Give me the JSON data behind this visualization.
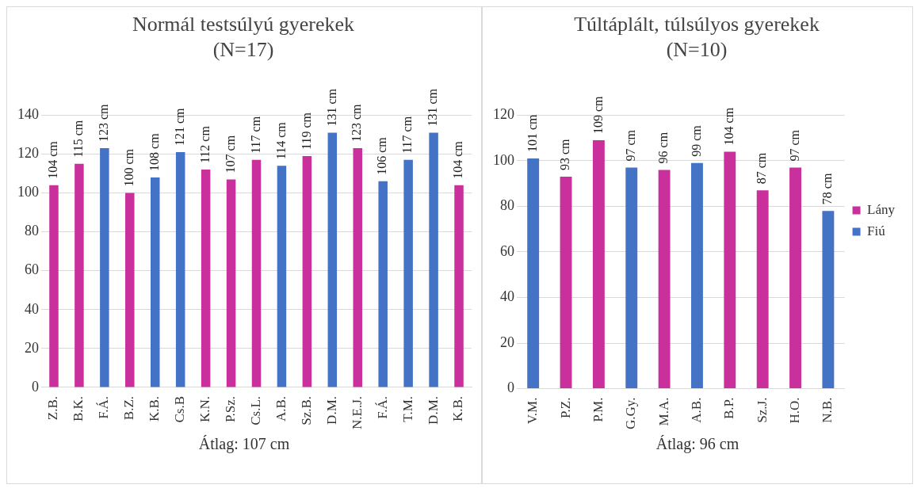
{
  "chart_data": [
    {
      "type": "bar",
      "title": "Normál testsúlyú gyerekek (N=17)",
      "categories": [
        "Z.B.",
        "B.K.",
        "F.Á.",
        "B.Z.",
        "K.B.",
        "Cs.B",
        "K.N.",
        "P.Sz.",
        "Cs.L.",
        "A.B.",
        "Sz.B.",
        "D.M.",
        "N.E.J.",
        "F.Á.",
        "T.M.",
        "D.M.",
        "K.B."
      ],
      "series": [
        {
          "color": "#c9309b",
          "values": [
            104,
            115,
            null,
            100,
            null,
            null,
            112,
            107,
            117,
            null,
            119,
            null,
            123,
            null,
            null,
            null,
            104
          ],
          "value_labels": [
            "104 cm",
            "115 cm",
            null,
            "100 cm",
            null,
            null,
            "112 cm",
            "107 cm",
            "117 cm",
            null,
            "119 cm",
            null,
            "123 cm",
            null,
            null,
            null,
            "104 cm"
          ]
        },
        {
          "color": "#4472c4",
          "values": [
            null,
            null,
            123,
            null,
            108,
            121,
            null,
            null,
            null,
            114,
            null,
            131,
            null,
            106,
            117,
            131,
            null
          ],
          "value_labels": [
            null,
            null,
            "123 cm",
            null,
            "108 cm",
            "121 cm",
            null,
            null,
            null,
            "114 cm",
            null,
            "131 cm",
            null,
            "106 cm",
            "117 cm",
            "131 cm",
            null
          ]
        }
      ],
      "ylim": [
        0,
        140
      ],
      "yticks": [
        0,
        20,
        40,
        60,
        80,
        100,
        120,
        140
      ],
      "grid": "y",
      "legend": false,
      "annotations": [
        "Átlag: 107 cm"
      ]
    },
    {
      "type": "bar",
      "title": "Túltáplált, túlsúlyos gyerekek (N=10)",
      "categories": [
        "V.M.",
        "P.Z.",
        "P.M.",
        "G.Gy.",
        "M.A.",
        "A.B.",
        "B.P.",
        "Sz.J.",
        "H.O.",
        "N.B."
      ],
      "series": [
        {
          "name": "Lány",
          "color": "#c9309b",
          "values": [
            null,
            93,
            109,
            null,
            96,
            null,
            104,
            87,
            97,
            null
          ],
          "value_labels": [
            null,
            "93 cm",
            "109 cm",
            null,
            "96 cm",
            null,
            "104 cm",
            "87 cm",
            "97 cm",
            null
          ]
        },
        {
          "name": "Fiú",
          "color": "#4472c4",
          "values": [
            101,
            null,
            null,
            97,
            null,
            99,
            null,
            null,
            null,
            78
          ],
          "value_labels": [
            "101 cm",
            null,
            null,
            "97 cm",
            null,
            "99 cm",
            null,
            null,
            null,
            "78 cm"
          ]
        }
      ],
      "ylim": [
        0,
        120
      ],
      "yticks": [
        0,
        20,
        40,
        60,
        80,
        100,
        120
      ],
      "grid": "y",
      "legend": "right",
      "annotations": [
        "Átlag: 96 cm"
      ]
    }
  ]
}
